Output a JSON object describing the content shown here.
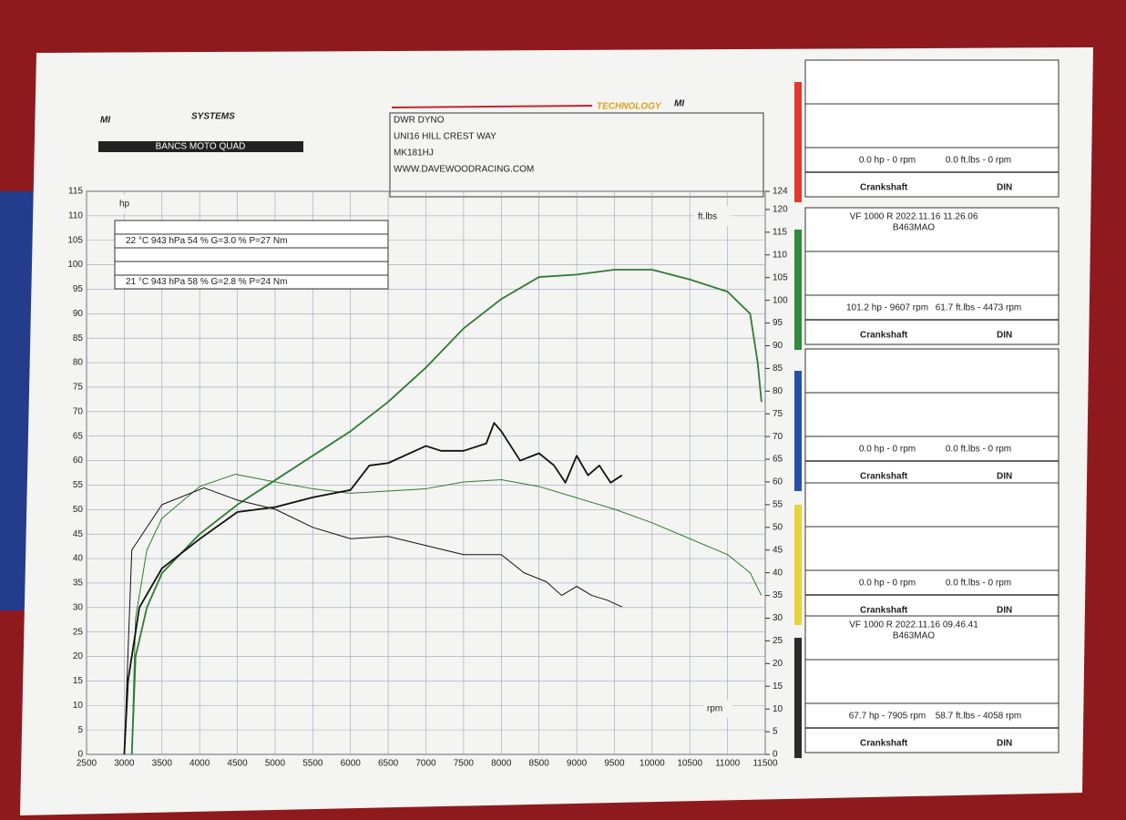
{
  "header": {
    "logo": "SYSTEMS",
    "logo_sub": "BANCS MOTO QUAD",
    "tech": "TECHNOLOGY",
    "address": [
      "DWR DYNO",
      "UNI16 HILL CREST WAY",
      "MK181HJ",
      "WWW.DAVEWOODRACING.COM"
    ]
  },
  "chart_data": {
    "type": "line",
    "x_label": "rpm",
    "y_label": "hp",
    "y2_label": "ft.lbs",
    "grid": true,
    "conditions": [
      "22 °C   943 hPa   54 %   G=3.0 %   P=27 Nm",
      "21 °C   943 hPa   58 %   G=2.8 %   P=24 Nm"
    ],
    "xlim": [
      2500,
      11500
    ],
    "xticks": [
      2500,
      3000,
      3500,
      4000,
      4500,
      5000,
      5500,
      6000,
      6500,
      7000,
      7500,
      8000,
      8500,
      9000,
      9500,
      10000,
      10500,
      11000,
      11500
    ],
    "ylim": [
      0,
      115
    ],
    "yticks": [
      0,
      5,
      10,
      15,
      20,
      25,
      30,
      35,
      40,
      45,
      50,
      55,
      60,
      65,
      70,
      75,
      80,
      85,
      90,
      95,
      100,
      105,
      110,
      115
    ],
    "y2lim": [
      0,
      124
    ],
    "y2ticks": [
      0,
      5,
      10,
      15,
      20,
      25,
      30,
      35,
      40,
      45,
      50,
      55,
      60,
      65,
      70,
      75,
      80,
      85,
      90,
      95,
      100,
      105,
      110,
      115,
      120,
      124
    ],
    "series": [
      {
        "color": "#2f7a34",
        "width": 1.8,
        "x": [
          3100,
          3150,
          3300,
          3500,
          4000,
          4500,
          5000,
          5500,
          6000,
          6500,
          7000,
          7500,
          8000,
          8500,
          9000,
          9500,
          10000,
          10500,
          11000,
          11300,
          11400,
          11450
        ],
        "values": [
          0,
          20,
          30,
          37,
          45,
          51,
          56,
          61,
          66,
          72,
          79,
          87,
          93,
          97.5,
          98,
          99,
          99,
          97,
          94.5,
          90,
          80,
          72
        ]
      },
      {
        "color": "#2f7a34",
        "width": 1,
        "axis": "y2",
        "x": [
          3100,
          3150,
          3300,
          3500,
          4000,
          4473,
          5000,
          5500,
          6000,
          7000,
          7500,
          8000,
          8500,
          9000,
          9500,
          10000,
          10500,
          11000,
          11300,
          11450
        ],
        "values": [
          0,
          30,
          45,
          52,
          59,
          61.7,
          60,
          58.5,
          57.5,
          58.5,
          60,
          60.5,
          59,
          56.5,
          54,
          51,
          47.5,
          44,
          40,
          35
        ]
      },
      {
        "color": "#111111",
        "width": 1.8,
        "x": [
          3000,
          3050,
          3200,
          3500,
          4000,
          4500,
          5000,
          5500,
          6000,
          6250,
          6500,
          7000,
          7200,
          7500,
          7800,
          7905,
          8000,
          8250,
          8500,
          8700,
          8850,
          9000,
          9150,
          9300,
          9450,
          9600
        ],
        "values": [
          0,
          15,
          30,
          38,
          44,
          49.5,
          50.5,
          52.5,
          54,
          59,
          59.5,
          63,
          62,
          62,
          63.5,
          67.7,
          66,
          60,
          61.5,
          59,
          55.5,
          61,
          57,
          59,
          55.5,
          57
        ]
      },
      {
        "color": "#111111",
        "width": 1,
        "axis": "y2",
        "x": [
          3000,
          3100,
          3500,
          4058,
          4500,
          5000,
          5500,
          6000,
          6500,
          7000,
          7500,
          8000,
          8300,
          8600,
          8800,
          9000,
          9200,
          9400,
          9600
        ],
        "values": [
          0,
          45,
          55,
          58.7,
          56,
          54,
          50,
          47.5,
          48,
          46,
          44,
          44,
          40,
          38,
          35,
          37,
          35,
          34,
          32.5
        ]
      }
    ]
  },
  "panels": [
    {
      "color": "#e03a2f",
      "summary_hp": "0.0 hp - 0 rpm",
      "summary_tq": "0.0 ft.lbs - 0 rpm",
      "mount": "Crankshaft",
      "norm": "DIN"
    },
    {
      "color": "#2f8a3a",
      "title": "VF 1000 R   2022.11.16 11.26.06",
      "subtitle": "B463MAO",
      "summary_hp": "101.2 hp - 9607 rpm",
      "summary_tq": "61.7 ft.lbs - 4473 rpm",
      "mount": "Crankshaft",
      "norm": "DIN"
    },
    {
      "color": "#2450a8",
      "summary_hp": "0.0 hp - 0 rpm",
      "summary_tq": "0.0 ft.lbs - 0 rpm",
      "mount": "Crankshaft",
      "norm": "DIN"
    },
    {
      "color": "#e8d23a",
      "summary_hp": "0.0 hp - 0 rpm",
      "summary_tq": "0.0 ft.lbs - 0 rpm",
      "mount": "Crankshaft",
      "norm": "DIN"
    },
    {
      "color": "#2b2b2b",
      "title": "VF 1000 R   2022.11.16 09.46.41",
      "subtitle": "B463MAO",
      "summary_hp": "67.7 hp - 7905 rpm",
      "summary_tq": "58.7 ft.lbs - 4058 rpm",
      "mount": "Crankshaft",
      "norm": "DIN"
    }
  ]
}
